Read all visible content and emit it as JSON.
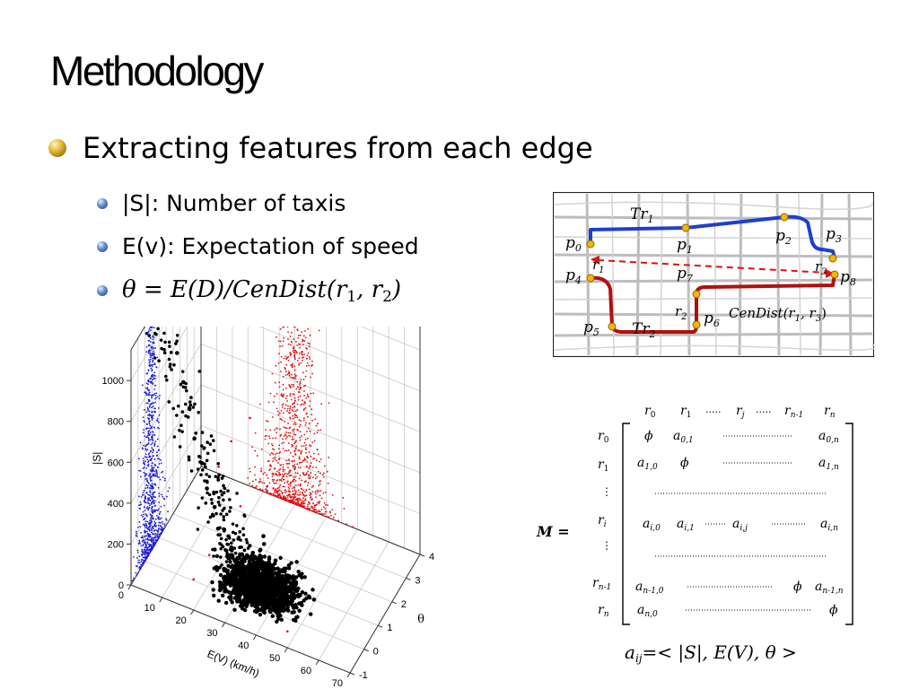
{
  "slide": {
    "title": "Methodology",
    "bullet_main": "Extracting features from each edge",
    "sub_bullets": [
      "|S|: Number of taxis",
      "E(v): Expectation of speed"
    ],
    "theta_formula": {
      "lhs": "θ = E(D)/CenDist(r",
      "s1": "1",
      "mid": ", r",
      "s2": "2",
      "end": ")"
    }
  },
  "map": {
    "tr1": "Tr",
    "tr1_sub": "1",
    "tr2": "Tr",
    "tr2_sub": "2",
    "points": {
      "p0": "0",
      "p1": "1",
      "p2": "2",
      "p3": "3",
      "p4": "4",
      "p5": "5",
      "p6": "6",
      "p7": "7",
      "p8": "8"
    },
    "regions": {
      "r1": "1",
      "r2": "2",
      "r3": "3"
    },
    "cendist_label": "CenDist(r",
    "cendist_s1": "1",
    "cendist_mid": ", r",
    "cendist_s2": "3",
    "cendist_end": ")",
    "colors": {
      "tr1": "#1f3fd1",
      "tr2": "#b01010",
      "point": "#f5b700",
      "arrow": "#e01010"
    }
  },
  "matrix": {
    "label": "M =",
    "col_headers": [
      "r",
      "r",
      ".....",
      "r",
      ".....",
      "r",
      "r"
    ],
    "col_subs": [
      "0",
      "1",
      "",
      "j",
      "",
      "n-1",
      "n"
    ],
    "row_headers": [
      "r",
      "r",
      "⋮",
      "r",
      "⋮",
      "r",
      "r"
    ],
    "row_subs": [
      "0",
      "1",
      "",
      "i",
      "",
      "n-1",
      "n"
    ],
    "phi": "ϕ",
    "a": "a",
    "cells": {
      "r0_a01": "0,1",
      "r0_a0n": "0,n",
      "r1_a10": "1,0",
      "r1_a1n": "1,n",
      "ri_ai0": "i,0",
      "ri_ai1": "i,1",
      "ri_aij": "i,j",
      "ri_ain": "i,n",
      "rn1_an10": "n-1,0",
      "rn1_an1n": "n-1,n",
      "rn_an0": "n,0"
    },
    "element_def": {
      "lhs": "a",
      "lhs_sub": "ij",
      "rhs": "=< |S|, E(V), θ >"
    }
  },
  "chart_data": {
    "type": "scatter",
    "dimensions": 3,
    "title": "",
    "xlabel": "E(V) (km/h)",
    "ylabel": "θ",
    "zlabel": "|S|",
    "x_ticks": [
      "0",
      "10",
      "20",
      "30",
      "40",
      "50",
      "60",
      "70"
    ],
    "y_ticks": [
      "-1",
      "0",
      "1",
      "2",
      "3",
      "4"
    ],
    "z_ticks": [
      "0",
      "200",
      "400",
      "600",
      "800",
      "1000"
    ],
    "xlim": [
      0,
      70
    ],
    "ylim": [
      -1,
      4
    ],
    "zlim": [
      0,
      1150
    ],
    "grid": true,
    "series": [
      {
        "color": "#000000",
        "points": [
          [
            28,
            0.4,
            80
          ],
          [
            32,
            0.7,
            60
          ],
          [
            36,
            0.3,
            40
          ],
          [
            30,
            1.0,
            110
          ],
          [
            40,
            0.5,
            30
          ],
          [
            26,
            0.2,
            150
          ],
          [
            34,
            0.9,
            70
          ],
          [
            38,
            1.2,
            50
          ],
          [
            44,
            0.6,
            20
          ],
          [
            24,
            0.6,
            200
          ],
          [
            22,
            0.3,
            260
          ],
          [
            20,
            0.5,
            330
          ],
          [
            18,
            0.4,
            420
          ],
          [
            16,
            0.5,
            520
          ],
          [
            14,
            0.4,
            640
          ],
          [
            12,
            0.5,
            760
          ],
          [
            10,
            0.5,
            880
          ],
          [
            8,
            0.5,
            1010
          ],
          [
            42,
            1.0,
            35
          ],
          [
            46,
            0.8,
            25
          ],
          [
            50,
            0.9,
            15
          ],
          [
            35,
            1.5,
            45
          ],
          [
            30,
            1.8,
            60
          ],
          [
            28,
            2.2,
            40
          ],
          [
            48,
            0.3,
            18
          ]
        ]
      },
      {
        "color": "#1f1fd6",
        "points": [
          [
            0,
            0.3,
            150
          ],
          [
            0,
            0.5,
            250
          ],
          [
            0,
            0.6,
            350
          ],
          [
            0,
            0.4,
            450
          ],
          [
            0,
            0.5,
            550
          ],
          [
            0,
            0.7,
            650
          ],
          [
            0,
            0.3,
            750
          ],
          [
            0,
            0.5,
            850
          ],
          [
            0,
            0.6,
            1000
          ],
          [
            0,
            0.4,
            1100
          ]
        ]
      },
      {
        "color": "#e01010",
        "points": [
          [
            20,
            -1,
            150
          ],
          [
            25,
            -1,
            300
          ],
          [
            30,
            -1,
            450
          ],
          [
            35,
            -1,
            600
          ],
          [
            28,
            -1,
            750
          ],
          [
            40,
            -1,
            200
          ],
          [
            45,
            -1,
            120
          ],
          [
            50,
            -1,
            80
          ],
          [
            32,
            -1,
            900
          ],
          [
            38,
            -1,
            1050
          ]
        ]
      }
    ]
  }
}
